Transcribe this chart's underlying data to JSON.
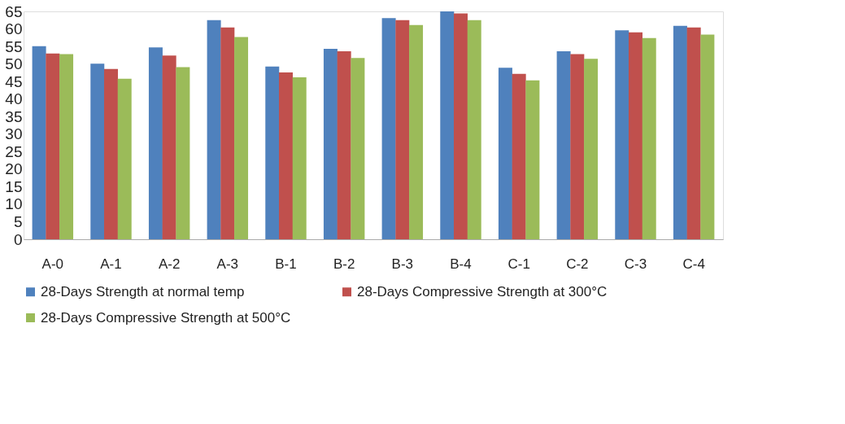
{
  "chart_data": {
    "type": "bar",
    "categories": [
      "A-0",
      "A-1",
      "A-2",
      "A-3",
      "B-1",
      "B-2",
      "B-3",
      "B-4",
      "C-1",
      "C-2",
      "C-3",
      "C-4"
    ],
    "series": [
      {
        "name": "28-Days Strength at normal temp",
        "color": "#4f81bd",
        "values": [
          55.1,
          50.1,
          54.7,
          62.5,
          49.3,
          54.3,
          63.1,
          65,
          48.9,
          53.6,
          59.6,
          60.9
        ]
      },
      {
        "name": "28-Days Compressive Strength at 300°C",
        "color": "#c0504d",
        "values": [
          53.0,
          48.6,
          52.4,
          60.4,
          47.6,
          53.6,
          62.5,
          64.4,
          47.2,
          52.8,
          59.0,
          60.4
        ]
      },
      {
        "name": "28-Days Compressive Strength at 500°C",
        "color": "#9bbb59",
        "values": [
          52.8,
          45.8,
          49.1,
          57.7,
          46.2,
          51.7,
          61.1,
          62.5,
          45.3,
          51.5,
          57.4,
          58.4
        ]
      }
    ],
    "ylim": [
      0,
      65
    ],
    "yticks": [
      0,
      5,
      10,
      15,
      20,
      25,
      30,
      35,
      40,
      45,
      50,
      55,
      60,
      65
    ],
    "grid": false,
    "legend": "bottom"
  }
}
